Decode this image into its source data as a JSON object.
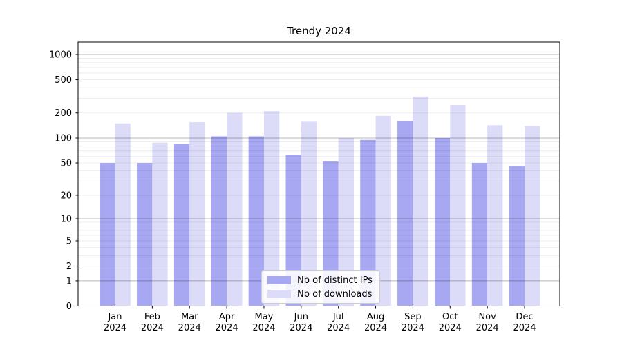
{
  "chart_data": {
    "type": "bar",
    "title": "Trendy 2024",
    "categories": [
      "Jan",
      "Feb",
      "Mar",
      "Apr",
      "May",
      "Jun",
      "Jul",
      "Aug",
      "Sep",
      "Oct",
      "Nov",
      "Dec"
    ],
    "category_year": "2024",
    "series": [
      {
        "name": "Nb of distinct IPs",
        "color": "#a7a7f2",
        "values": [
          50,
          50,
          85,
          105,
          105,
          63,
          52,
          95,
          160,
          100,
          50,
          46
        ]
      },
      {
        "name": "Nb of downloads",
        "color": "#dcdcf8",
        "values": [
          150,
          88,
          155,
          200,
          210,
          157,
          100,
          185,
          315,
          250,
          143,
          140
        ]
      }
    ],
    "xlabel": "",
    "ylabel": "",
    "ylim": [
      0,
      1000
    ],
    "y_axis": {
      "scale": "symlog-log1p",
      "tick_labels": [
        "1000",
        "500",
        "200",
        "100",
        "50",
        "20",
        "10",
        "5",
        "2",
        "1",
        "0"
      ],
      "tick_values": [
        1000,
        500,
        200,
        100,
        50,
        20,
        10,
        5,
        2,
        1,
        0
      ],
      "major_grid_values": [
        1,
        10,
        100,
        1000
      ],
      "grid": "on"
    },
    "legend": {
      "position": "lower center",
      "entries": [
        "Nb of distinct IPs",
        "Nb of downloads"
      ]
    },
    "colors": {
      "bar_ips": "#a7a7f2",
      "bar_downloads": "#dcdcf8",
      "major_grid": "rgba(0,0,0,0.28)",
      "minor_grid": "rgba(0,0,0,0.07)",
      "spine": "#000000",
      "text": "#000000",
      "background": "#ffffff"
    }
  }
}
